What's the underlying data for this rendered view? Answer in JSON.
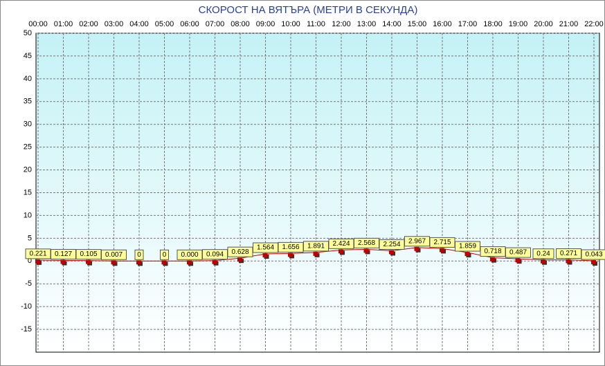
{
  "chart_data": {
    "type": "line",
    "title": "СКОРОСТ НА ВЯТЪРА (МЕТРИ В СЕКУНДА)",
    "categories": [
      "00:00",
      "01:00",
      "02:00",
      "03:00",
      "04:00",
      "05:00",
      "06:00",
      "07:00",
      "08:00",
      "09:00",
      "10:00",
      "11:00",
      "12:00",
      "13:00",
      "14:00",
      "15:00",
      "16:00",
      "17:00",
      "18:00",
      "19:00",
      "20:00",
      "21:00",
      "22:00"
    ],
    "values": [
      0.221,
      0.127,
      0.105,
      0.007,
      0,
      0,
      0.0,
      0.094,
      0.628,
      1.564,
      1.656,
      1.891,
      2.424,
      2.568,
      2.254,
      2.967,
      2.715,
      1.859,
      0.718,
      0.487,
      0.24,
      0.271,
      0.043
    ],
    "value_labels": [
      "0.221",
      "0.127",
      "0.105",
      "0.007",
      "0",
      "0",
      "0.000",
      "0.094",
      "0.628",
      "1.564",
      "1.656",
      "1.891",
      "2.424",
      "2.568",
      "2.254",
      "2.967",
      "2.715",
      "1.859",
      "0.718",
      "0.487",
      "0.24",
      "0.271",
      "0.043"
    ],
    "color": "#c00000",
    "ylim": [
      -20,
      50
    ],
    "yticks": [
      50,
      45,
      40,
      35,
      30,
      25,
      20,
      15,
      10,
      5,
      0,
      -5,
      -10,
      -15
    ],
    "grid": true
  }
}
